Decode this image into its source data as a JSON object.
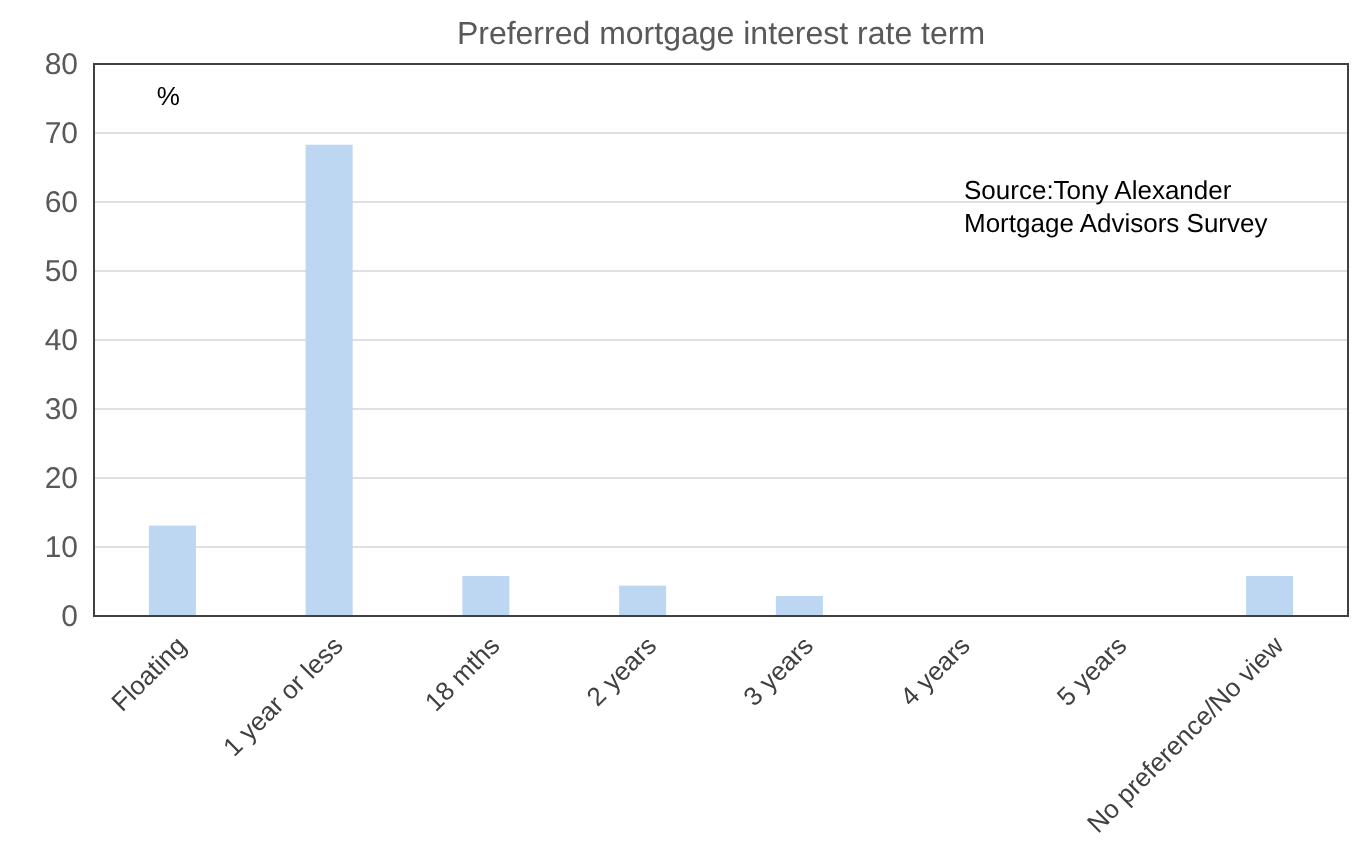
{
  "chart_data": {
    "type": "bar",
    "title": "Preferred mortgage interest rate term",
    "ylabel": "%",
    "categories": [
      "Floating",
      "1 year or less",
      "18 mths",
      "2 years",
      "3 years",
      "4 years",
      "5 years",
      "No preference/No view"
    ],
    "values": [
      13.1,
      68.3,
      5.8,
      4.4,
      2.9,
      0,
      0,
      5.8
    ],
    "color": "#bdd7f3",
    "ylim": [
      0,
      80
    ],
    "yticks": [
      0,
      10,
      20,
      30,
      40,
      50,
      60,
      70,
      80
    ],
    "grid": "y",
    "annotations": [
      "Source:Tony Alexander Mortgage Advisors Survey"
    ]
  }
}
